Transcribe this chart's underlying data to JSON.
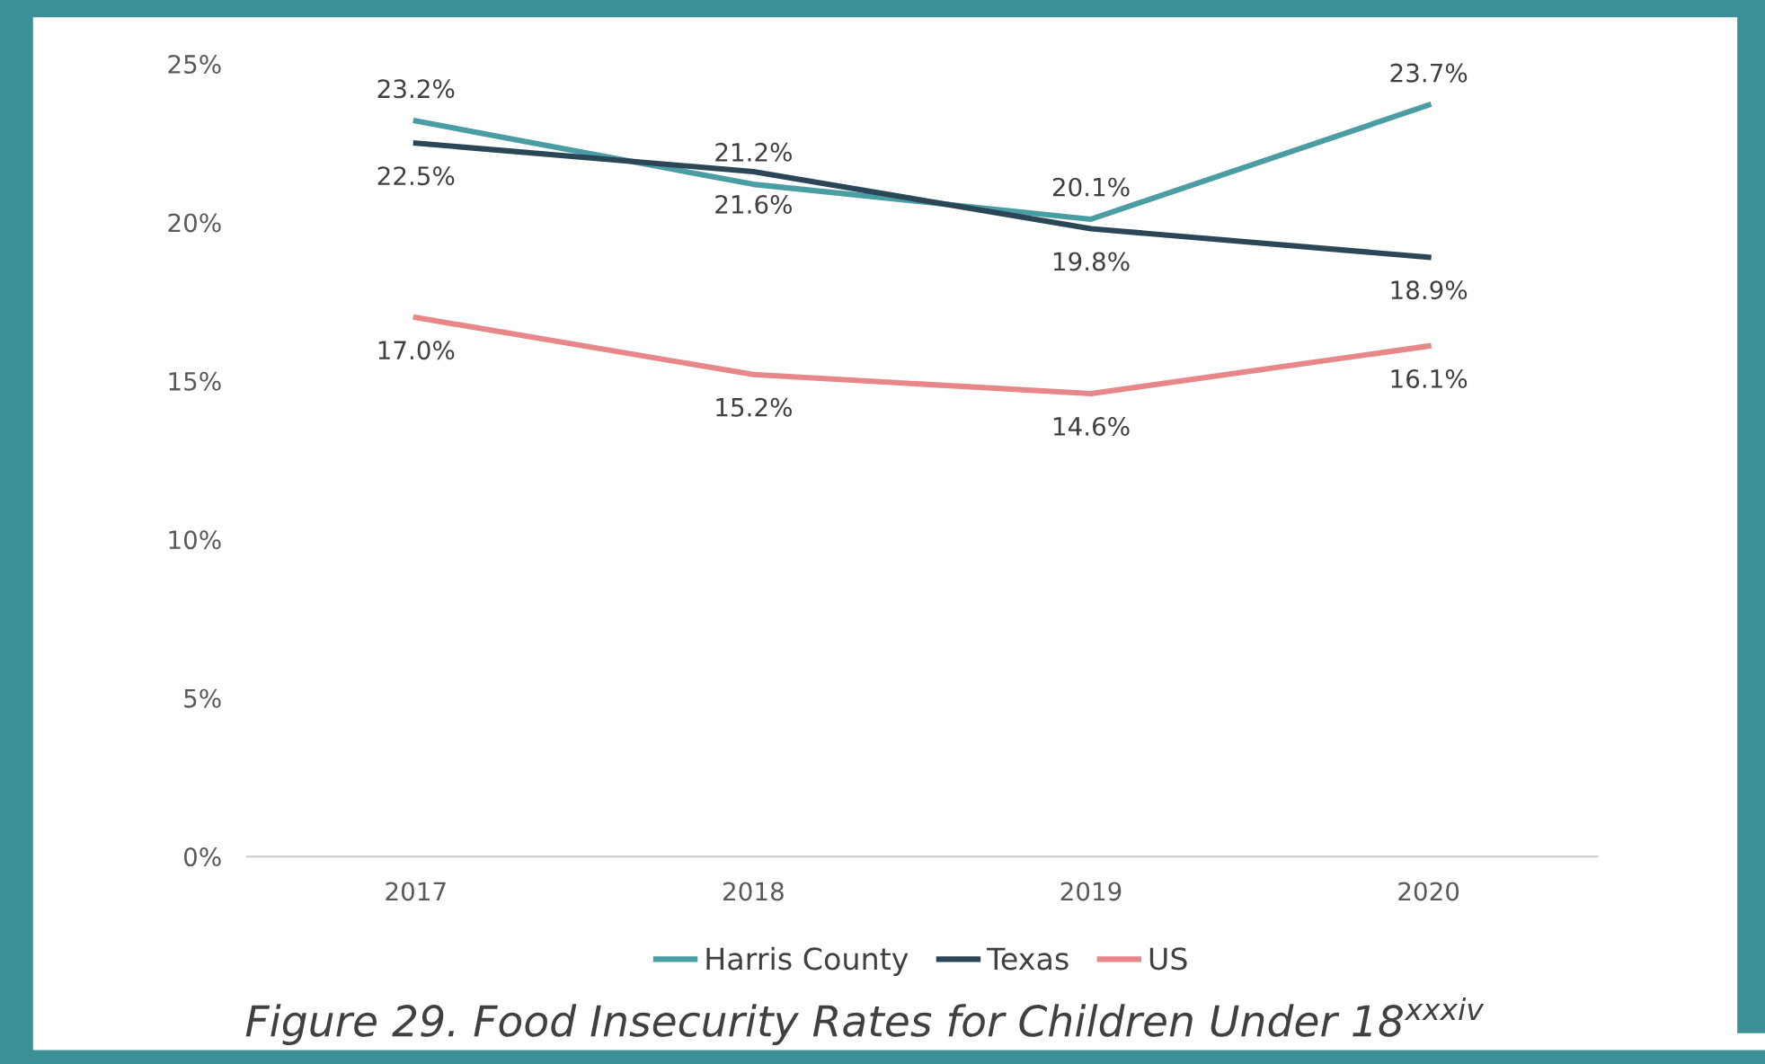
{
  "chart_data": {
    "type": "line",
    "categories": [
      "2017",
      "2018",
      "2019",
      "2020"
    ],
    "series": [
      {
        "name": "Harris County",
        "color": "#4a9ea3",
        "values": [
          23.2,
          21.2,
          20.1,
          23.7
        ],
        "value_labels": [
          "23.2%",
          "21.2%",
          "20.1%",
          "23.7%"
        ]
      },
      {
        "name": "Texas",
        "color": "#2b4657",
        "values": [
          22.5,
          21.6,
          19.8,
          18.9
        ],
        "value_labels": [
          "22.5%",
          "21.6%",
          "19.8%",
          "18.9%"
        ]
      },
      {
        "name": "US",
        "color": "#e8878a",
        "values": [
          17.0,
          15.2,
          14.6,
          16.1
        ],
        "value_labels": [
          "17.0%",
          "15.2%",
          "14.6%",
          "16.1%"
        ]
      }
    ],
    "ylim": [
      0,
      25
    ],
    "yticks": [
      {
        "value": 0,
        "label": "0%"
      },
      {
        "value": 5,
        "label": "5%"
      },
      {
        "value": 10,
        "label": "10%"
      },
      {
        "value": 15,
        "label": "15%"
      },
      {
        "value": 20,
        "label": "20%"
      },
      {
        "value": 25,
        "label": "25%"
      }
    ],
    "grid": false,
    "legend": "bottom",
    "marker": "none",
    "line_style": "solid",
    "annotations": [
      "Figure 29. Food Insecurity Rates for Children Under 18$^{xxxiv}$"
    ]
  }
}
